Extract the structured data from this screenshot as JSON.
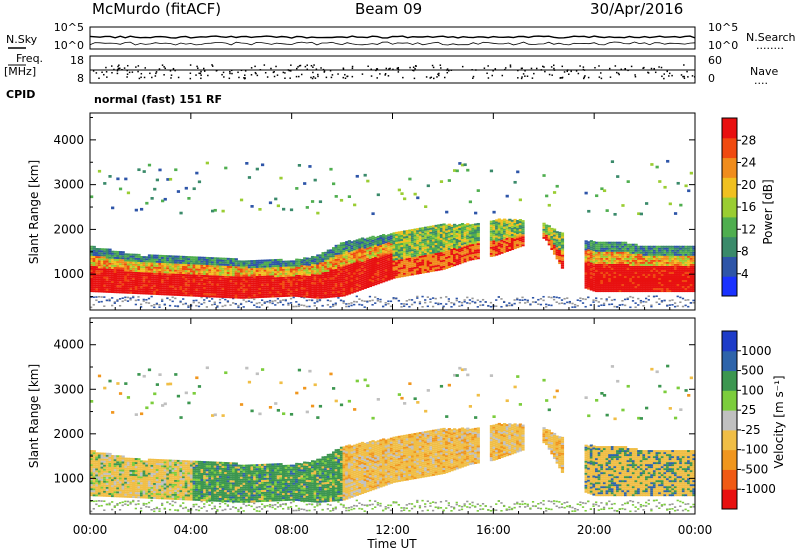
{
  "header": {
    "station": "McMurdo (fitACF)",
    "beam": "Beam 09",
    "date": "30/Apr/2016"
  },
  "side_labels": {
    "nsky": "N.Sky",
    "freq": "Freq.",
    "mhz": "[MHz]",
    "cpid": "CPID",
    "nsearch": "N.Search",
    "nave": "Nave",
    "nsearch_dots": "........",
    "nave_dots": "...."
  },
  "noise_panel": {
    "ticks_left": [
      "10^5",
      "10^0"
    ],
    "ticks_right": [
      "10^5",
      "10^0"
    ]
  },
  "freq_panel": {
    "ticks_left": [
      "18",
      "8"
    ],
    "ticks_right": [
      "60",
      "0"
    ]
  },
  "cpid_panel": {
    "text": "normal (fast) 151 RF"
  },
  "colors": {
    "power_scale": [
      "#1a32ff",
      "#2e55a8",
      "#3a8a6a",
      "#4fae4f",
      "#9acd32",
      "#f0c020",
      "#f08c1c",
      "#f04a10",
      "#e81010"
    ],
    "velocity_scale": [
      "#e81010",
      "#f05a14",
      "#f0961e",
      "#f0be46",
      "#c0c0c0",
      "#7ccd3c",
      "#3c9650",
      "#2e64aa",
      "#1e3cc8"
    ],
    "ground_scatter": "#969696"
  },
  "chart_data": [
    {
      "type": "heatmap",
      "name": "power",
      "xlabel": "",
      "ylabel": "Slant Range [km]",
      "xlim": [
        0,
        24
      ],
      "ylim": [
        200,
        4600
      ],
      "y_ticks": [
        "4000",
        "3000",
        "2000",
        "1000"
      ],
      "colorbar": {
        "label": "Power [dB]",
        "ticks": [
          "28",
          "24",
          "20",
          "16",
          "12",
          "8",
          "4"
        ],
        "range": [
          0,
          32
        ]
      },
      "main_band": {
        "x_hours": [
          0,
          2,
          4,
          6,
          8,
          9,
          10,
          11,
          12,
          13,
          14,
          15,
          16,
          17,
          18,
          19,
          20,
          21,
          22,
          23,
          24
        ],
        "lower_km": [
          600,
          550,
          500,
          450,
          500,
          450,
          500,
          700,
          900,
          1000,
          1100,
          1300,
          1400,
          1600,
          1800,
          800,
          600,
          600,
          600,
          600,
          600
        ],
        "upper_km": [
          1600,
          1400,
          1400,
          1300,
          1300,
          1400,
          1700,
          1800,
          1900,
          2000,
          2100,
          2100,
          2200,
          2200,
          2100,
          1800,
          1700,
          1700,
          1600,
          1600,
          1600
        ]
      },
      "gaps_hours": [
        [
          15.4,
          15.8
        ],
        [
          17.2,
          17.9
        ],
        [
          18.7,
          19.6
        ]
      ]
    },
    {
      "type": "heatmap",
      "name": "velocity",
      "xlabel": "Time UT",
      "ylabel": "Slant Range [km]",
      "xlim": [
        0,
        24
      ],
      "ylim": [
        200,
        4600
      ],
      "x_ticks": [
        "00:00",
        "04:00",
        "08:00",
        "12:00",
        "16:00",
        "20:00",
        "00:00"
      ],
      "y_ticks": [
        "4000",
        "3000",
        "2000",
        "1000"
      ],
      "colorbar": {
        "label": "Velocity [m s⁻¹]",
        "ticks": [
          "1000",
          "500",
          "100",
          "25",
          "-25",
          "-100",
          "-500",
          "-1000"
        ],
        "range": [
          -1000,
          1000
        ]
      },
      "velocity_by_time": [
        {
          "from_hour": 0,
          "to_hour": 4,
          "dominant": "-100",
          "mix": [
            "25",
            "100",
            "-25"
          ]
        },
        {
          "from_hour": 4,
          "to_hour": 10,
          "dominant": "100",
          "mix": [
            "500",
            "25",
            "-100"
          ]
        },
        {
          "from_hour": 10,
          "to_hour": 19,
          "dominant": "-100",
          "mix": [
            "-500",
            "-25"
          ]
        },
        {
          "from_hour": 19,
          "to_hour": 24,
          "dominant": "-100",
          "mix": [
            "100",
            "500"
          ]
        }
      ]
    }
  ]
}
